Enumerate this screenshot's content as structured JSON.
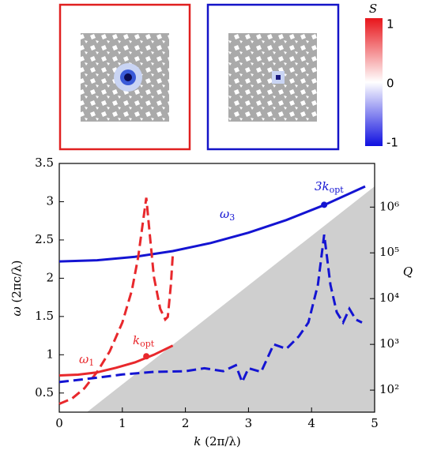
{
  "chart_data": {
    "type": "line",
    "xlabel": {
      "text": "k",
      "unit": "(2π/λ)"
    },
    "ylabel": {
      "text": "ω",
      "unit": "(2πc/λ)"
    },
    "y2label": "Q",
    "xlim": [
      0,
      5
    ],
    "xticks": [
      0,
      1,
      2,
      3,
      4,
      5
    ],
    "ylim": [
      0.25,
      3.5
    ],
    "yticks": [
      0.5,
      1,
      1.5,
      2,
      2.5,
      3,
      3.5
    ],
    "y2scale": "log",
    "y2lim": [
      33,
      9000000
    ],
    "y2ticks": [
      {
        "value": 100,
        "label": "10²"
      },
      {
        "value": 1000,
        "label": "10³"
      },
      {
        "value": 10000,
        "label": "10⁴"
      },
      {
        "value": 100000,
        "label": "10⁵"
      },
      {
        "value": 1000000,
        "label": "10⁶"
      }
    ],
    "series": [
      {
        "color": "#e8282c",
        "style": "solid",
        "x": [
          0,
          0.3,
          0.6,
          0.9,
          1.2,
          1.5,
          1.8
        ],
        "values": [
          0.73,
          0.74,
          0.77,
          0.83,
          0.9,
          1.0,
          1.12
        ]
      },
      {
        "color": "#1414d2",
        "style": "solid",
        "x": [
          0,
          0.6,
          1.2,
          1.8,
          2.4,
          3.0,
          3.6,
          4.2,
          4.85
        ],
        "values": [
          2.22,
          2.235,
          2.28,
          2.355,
          2.46,
          2.595,
          2.76,
          2.956,
          3.2
        ]
      },
      {
        "color": "#e8282c",
        "style": "dashed",
        "axis": "y2",
        "x": [
          0,
          0.2,
          0.4,
          0.6,
          0.8,
          1.0,
          1.15,
          1.25,
          1.32,
          1.38,
          1.43,
          1.5,
          1.6,
          1.68,
          1.72,
          1.77,
          1.8
        ],
        "values": [
          50,
          65,
          110,
          250,
          700,
          3000,
          15000,
          80000,
          400000,
          1600000,
          300000,
          30000,
          6000,
          3500,
          4000,
          20000,
          90000
        ]
      },
      {
        "color": "#1414d2",
        "style": "dashed",
        "axis": "y2",
        "x": [
          0,
          0.5,
          1,
          1.5,
          2,
          2.3,
          2.6,
          2.8,
          2.9,
          3.0,
          3.2,
          3.4,
          3.6,
          3.8,
          3.95,
          4.1,
          4.2,
          4.3,
          4.4,
          4.5,
          4.6,
          4.7,
          4.8
        ],
        "values": [
          150,
          180,
          220,
          250,
          260,
          300,
          260,
          350,
          150,
          300,
          250,
          1000,
          800,
          1500,
          3000,
          20000,
          250000,
          20000,
          5000,
          3000,
          6000,
          3500,
          3000
        ]
      }
    ],
    "points": [
      {
        "x": 1.38,
        "y": 0.98,
        "color": "#e8282c"
      },
      {
        "x": 4.2,
        "y": 2.96,
        "color": "#1414d2"
      }
    ],
    "annotations": [
      {
        "text": "ω",
        "sub": "1",
        "color": "#e8282c"
      },
      {
        "text": "k",
        "sub": "opt",
        "color": "#e8282c"
      },
      {
        "text": "ω",
        "sub": "3",
        "color": "#1414d2"
      },
      {
        "text": "3k",
        "sub": "opt",
        "color": "#1414d2"
      }
    ]
  },
  "colorbar": {
    "label": "S",
    "ticks": [
      1,
      0,
      -1
    ]
  }
}
